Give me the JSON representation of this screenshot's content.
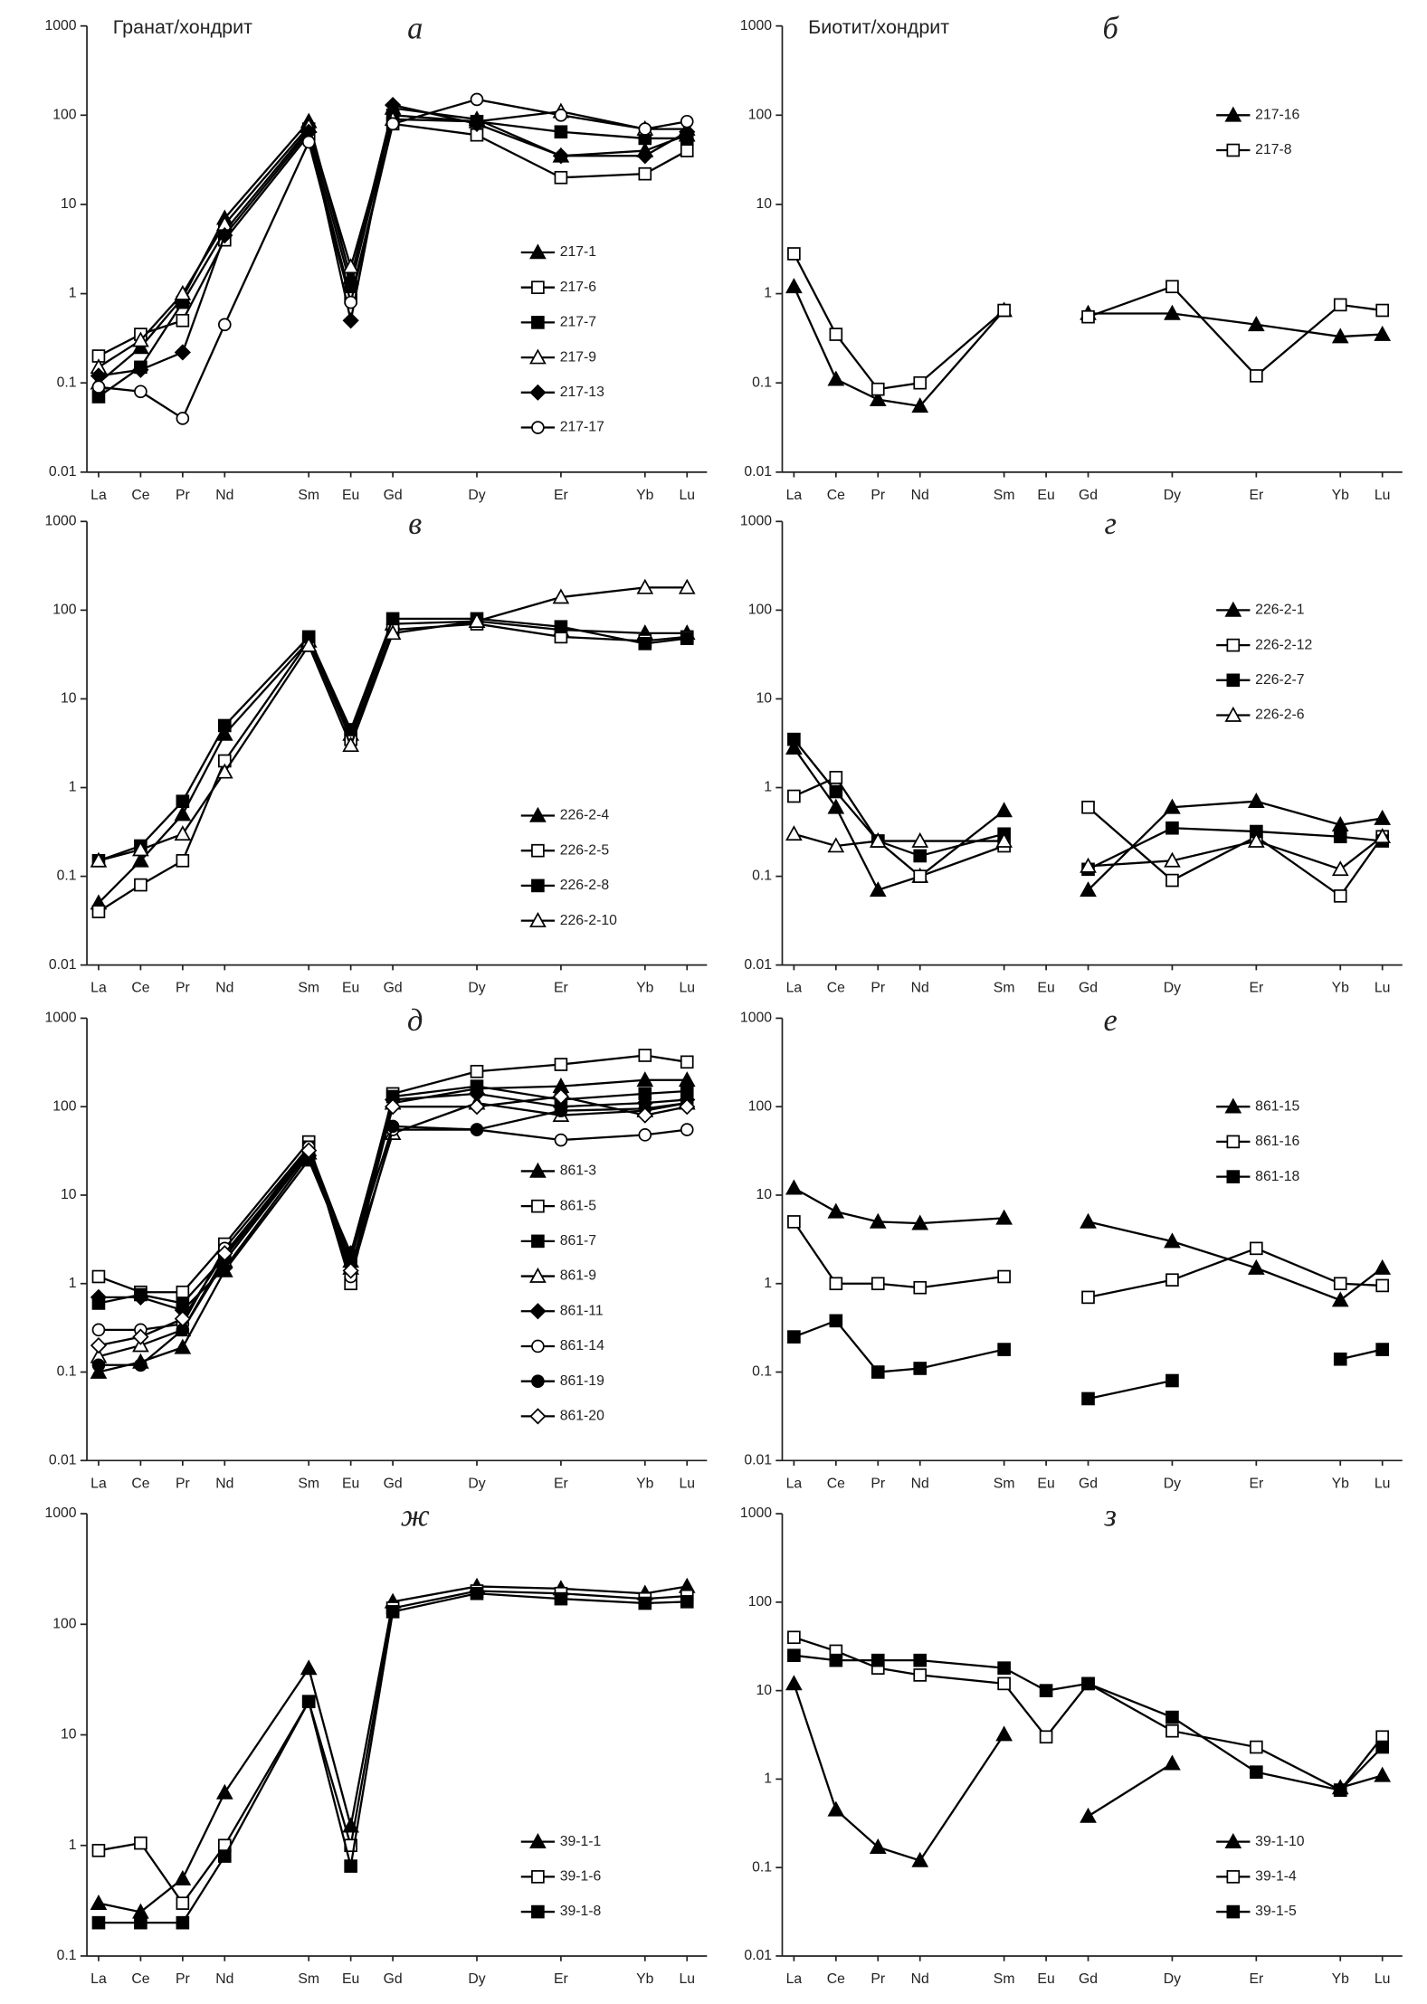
{
  "chart_data": [
    {
      "type": "line",
      "title": "а",
      "subtitle": "Гранат/хондрит",
      "log": true,
      "ylim": [
        0.01,
        1000
      ],
      "yticks": [
        0.01,
        0.1,
        1,
        10,
        100,
        1000
      ],
      "color": "#000000",
      "legend": "lower right",
      "categories": [
        "La",
        "Ce",
        "Pr",
        "Nd",
        "Sm",
        "Eu",
        "Gd",
        "Dy",
        "Er",
        "Yb",
        "Lu"
      ],
      "series": [
        {
          "name": "217-1",
          "marker": "triangle-filled",
          "values": [
            0.1,
            0.25,
            0.9,
            7,
            85,
            1.5,
            120,
            90,
            35,
            40,
            60
          ]
        },
        {
          "name": "217-6",
          "marker": "square-open",
          "values": [
            0.2,
            0.35,
            0.5,
            4,
            60,
            0.9,
            80,
            60,
            20,
            22,
            40
          ]
        },
        {
          "name": "217-7",
          "marker": "square-filled",
          "values": [
            0.07,
            0.15,
            0.8,
            5,
            70,
            1.2,
            100,
            85,
            65,
            55,
            55
          ]
        },
        {
          "name": "217-9",
          "marker": "triangle-open",
          "values": [
            0.15,
            0.3,
            1,
            6,
            75,
            2,
            90,
            85,
            110,
            70,
            70
          ]
        },
        {
          "name": "217-13",
          "marker": "diamond-filled",
          "values": [
            0.12,
            0.14,
            0.22,
            4.5,
            65,
            0.5,
            130,
            80,
            35,
            35,
            65
          ]
        },
        {
          "name": "217-17",
          "marker": "circle-open",
          "values": [
            0.09,
            0.08,
            0.04,
            0.45,
            50,
            0.8,
            80,
            150,
            100,
            70,
            85
          ]
        }
      ]
    },
    {
      "type": "line",
      "title": "б",
      "subtitle": "Биотит/хондрит",
      "log": true,
      "ylim": [
        0.01,
        1000
      ],
      "yticks": [
        0.01,
        0.1,
        1,
        10,
        100,
        1000
      ],
      "color": "#000000",
      "legend": "upper right",
      "categories": [
        "La",
        "Ce",
        "Pr",
        "Nd",
        "Sm",
        "Eu",
        "Gd",
        "Dy",
        "Er",
        "Yb",
        "Lu"
      ],
      "series": [
        {
          "name": "217-16",
          "marker": "triangle-filled",
          "values": [
            1.2,
            0.11,
            0.065,
            0.055,
            0.65,
            null,
            0.6,
            0.6,
            0.45,
            0.33,
            0.35
          ]
        },
        {
          "name": "217-8",
          "marker": "square-open",
          "values": [
            2.8,
            0.35,
            0.085,
            0.1,
            0.65,
            null,
            0.55,
            1.2,
            0.12,
            0.75,
            0.65
          ]
        }
      ]
    },
    {
      "type": "line",
      "title": "в",
      "log": true,
      "ylim": [
        0.01,
        1000
      ],
      "yticks": [
        0.01,
        0.1,
        1,
        10,
        100,
        1000
      ],
      "color": "#000000",
      "legend": "lower right",
      "categories": [
        "La",
        "Ce",
        "Pr",
        "Nd",
        "Sm",
        "Eu",
        "Gd",
        "Dy",
        "Er",
        "Yb",
        "Lu"
      ],
      "series": [
        {
          "name": "226-2-4",
          "marker": "triangle-filled",
          "values": [
            0.05,
            0.15,
            0.5,
            4,
            45,
            4,
            70,
            75,
            60,
            55,
            55
          ]
        },
        {
          "name": "226-2-5",
          "marker": "square-open",
          "values": [
            0.04,
            0.08,
            0.15,
            2,
            45,
            3.5,
            60,
            70,
            50,
            45,
            50
          ]
        },
        {
          "name": "226-2-8",
          "marker": "square-filled",
          "values": [
            0.15,
            0.22,
            0.7,
            5,
            50,
            4.5,
            80,
            80,
            65,
            42,
            48
          ]
        },
        {
          "name": "226-2-10",
          "marker": "triangle-open",
          "values": [
            0.15,
            0.2,
            0.3,
            1.5,
            40,
            3,
            55,
            75,
            140,
            180,
            180
          ]
        }
      ]
    },
    {
      "type": "line",
      "title": "г",
      "log": true,
      "ylim": [
        0.01,
        1000
      ],
      "yticks": [
        0.01,
        0.1,
        1,
        10,
        100,
        1000
      ],
      "color": "#000000",
      "legend": "upper right",
      "categories": [
        "La",
        "Ce",
        "Pr",
        "Nd",
        "Sm",
        "Eu",
        "Gd",
        "Dy",
        "Er",
        "Yb",
        "Lu"
      ],
      "series": [
        {
          "name": "226-2-1",
          "marker": "triangle-filled",
          "values": [
            2.8,
            0.6,
            0.07,
            0.1,
            0.55,
            null,
            0.07,
            0.6,
            0.7,
            0.38,
            0.45
          ]
        },
        {
          "name": "226-2-12",
          "marker": "square-open",
          "values": [
            0.8,
            1.3,
            0.25,
            0.1,
            0.22,
            null,
            0.6,
            0.09,
            0.28,
            0.06,
            0.28
          ]
        },
        {
          "name": "226-2-7",
          "marker": "square-filled",
          "values": [
            3.5,
            0.9,
            0.25,
            0.17,
            0.3,
            null,
            0.12,
            0.35,
            0.32,
            0.28,
            0.25
          ]
        },
        {
          "name": "226-2-6",
          "marker": "triangle-open",
          "values": [
            0.3,
            0.22,
            0.25,
            0.25,
            0.25,
            null,
            0.13,
            0.15,
            0.25,
            0.12,
            0.28
          ]
        }
      ]
    },
    {
      "type": "line",
      "title": "д",
      "log": true,
      "ylim": [
        0.01,
        1000
      ],
      "yticks": [
        0.01,
        0.1,
        1,
        10,
        100,
        1000
      ],
      "color": "#000000",
      "legend": "lower right",
      "categories": [
        "La",
        "Ce",
        "Pr",
        "Nd",
        "Sm",
        "Eu",
        "Gd",
        "Dy",
        "Er",
        "Yb",
        "Lu"
      ],
      "series": [
        {
          "name": "861-3",
          "marker": "triangle-filled",
          "values": [
            0.1,
            0.13,
            0.19,
            1.4,
            25,
            1.8,
            110,
            160,
            170,
            200,
            200
          ]
        },
        {
          "name": "861-5",
          "marker": "square-open",
          "values": [
            1.2,
            0.8,
            0.8,
            2.8,
            40,
            1,
            140,
            250,
            300,
            380,
            320
          ]
        },
        {
          "name": "861-7",
          "marker": "square-filled",
          "values": [
            0.6,
            0.75,
            0.6,
            2,
            35,
            2,
            130,
            170,
            120,
            140,
            150
          ]
        },
        {
          "name": "861-9",
          "marker": "triangle-open",
          "values": [
            0.15,
            0.2,
            0.3,
            1.8,
            30,
            1.5,
            50,
            110,
            80,
            90,
            110
          ]
        },
        {
          "name": "861-11",
          "marker": "diamond-filled",
          "values": [
            0.7,
            0.7,
            0.5,
            1.5,
            28,
            2.2,
            120,
            140,
            100,
            110,
            120
          ]
        },
        {
          "name": "861-14",
          "marker": "circle-open",
          "values": [
            0.3,
            0.3,
            0.35,
            2.5,
            35,
            1.2,
            55,
            55,
            42,
            48,
            55
          ]
        },
        {
          "name": "861-19",
          "marker": "circle-filled",
          "values": [
            0.12,
            0.12,
            0.3,
            2,
            30,
            2,
            60,
            55,
            90,
            95,
            110
          ]
        },
        {
          "name": "861-20",
          "marker": "diamond-open",
          "values": [
            0.2,
            0.25,
            0.4,
            2.2,
            32,
            1.4,
            100,
            100,
            130,
            80,
            100
          ]
        }
      ]
    },
    {
      "type": "line",
      "title": "е",
      "log": true,
      "ylim": [
        0.01,
        1000
      ],
      "yticks": [
        0.01,
        0.1,
        1,
        10,
        100,
        1000
      ],
      "color": "#000000",
      "legend": "upper right",
      "categories": [
        "La",
        "Ce",
        "Pr",
        "Nd",
        "Sm",
        "Eu",
        "Gd",
        "Dy",
        "Er",
        "Yb",
        "Lu"
      ],
      "series": [
        {
          "name": "861-15",
          "marker": "triangle-filled",
          "values": [
            12,
            6.5,
            5,
            4.8,
            5.5,
            null,
            5,
            3,
            1.5,
            0.65,
            1.5
          ]
        },
        {
          "name": "861-16",
          "marker": "square-open",
          "values": [
            5,
            1,
            1,
            0.9,
            1.2,
            null,
            0.7,
            1.1,
            2.5,
            1,
            0.95
          ]
        },
        {
          "name": "861-18",
          "marker": "square-filled",
          "values": [
            0.25,
            0.38,
            0.1,
            0.11,
            0.18,
            null,
            0.05,
            0.08,
            null,
            0.14,
            0.18
          ]
        }
      ]
    },
    {
      "type": "line",
      "title": "ж",
      "log": true,
      "ylim": [
        0.1,
        1000
      ],
      "yticks": [
        0.1,
        1,
        10,
        100,
        1000
      ],
      "color": "#000000",
      "legend": "lower right",
      "categories": [
        "La",
        "Ce",
        "Pr",
        "Nd",
        "Sm",
        "Eu",
        "Gd",
        "Dy",
        "Er",
        "Yb",
        "Lu"
      ],
      "series": [
        {
          "name": "39-1-1",
          "marker": "triangle-filled",
          "values": [
            0.3,
            0.25,
            0.5,
            3,
            40,
            1.5,
            160,
            220,
            210,
            190,
            220
          ]
        },
        {
          "name": "39-1-6",
          "marker": "square-open",
          "values": [
            0.9,
            1.05,
            0.3,
            1,
            20,
            1,
            140,
            200,
            190,
            170,
            180
          ]
        },
        {
          "name": "39-1-8",
          "marker": "square-filled",
          "values": [
            0.2,
            0.2,
            0.2,
            0.8,
            20,
            0.65,
            130,
            190,
            170,
            155,
            160
          ]
        }
      ]
    },
    {
      "type": "line",
      "title": "з",
      "log": true,
      "ylim": [
        0.01,
        1000
      ],
      "yticks": [
        0.01,
        0.1,
        1,
        10,
        100,
        1000
      ],
      "color": "#000000",
      "legend": "lower right",
      "categories": [
        "La",
        "Ce",
        "Pr",
        "Nd",
        "Sm",
        "Eu",
        "Gd",
        "Dy",
        "Er",
        "Yb",
        "Lu"
      ],
      "series": [
        {
          "name": "39-1-10",
          "marker": "triangle-filled",
          "values": [
            12,
            0.45,
            0.17,
            0.12,
            3.2,
            null,
            0.38,
            1.5,
            null,
            0.8,
            1.1
          ]
        },
        {
          "name": "39-1-4",
          "marker": "square-open",
          "values": [
            40,
            28,
            18,
            15,
            12,
            3,
            12,
            3.5,
            2.3,
            0.75,
            3
          ]
        },
        {
          "name": "39-1-5",
          "marker": "square-filled",
          "values": [
            25,
            22,
            22,
            22,
            18,
            10,
            12,
            5,
            1.2,
            0.75,
            2.3
          ]
        }
      ]
    }
  ]
}
